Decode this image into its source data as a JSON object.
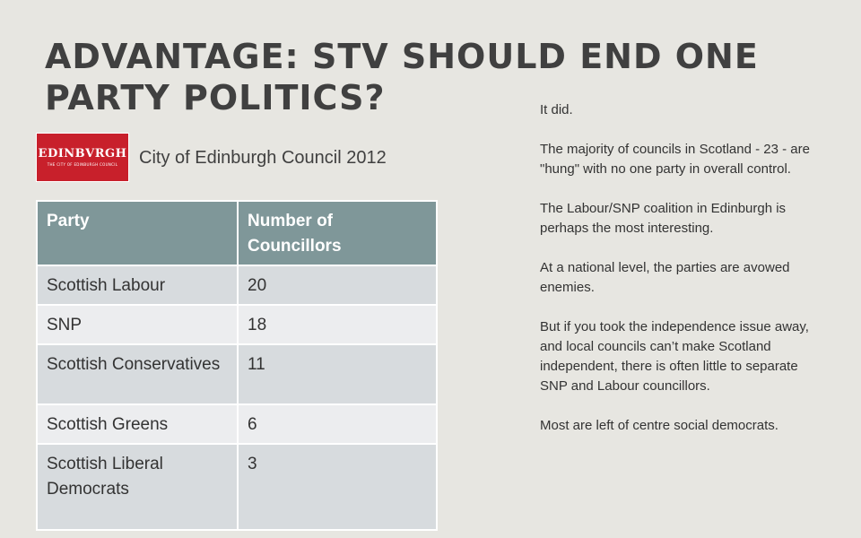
{
  "slide": {
    "title": "ADVANTAGE: STV SHOULD END ONE PARTY POLITICS?",
    "logo": {
      "main": "EDINBVRGH",
      "sub": "THE CITY OF EDINBURGH COUNCIL"
    },
    "subtitle": "City of Edinburgh Council 2012"
  },
  "table": {
    "headers": [
      "Party",
      "Number of Councillors"
    ],
    "rows": [
      {
        "party": "Scottish Labour",
        "count": "20"
      },
      {
        "party": "SNP",
        "count": "18"
      },
      {
        "party": "Scottish Conservatives",
        "count": "11"
      },
      {
        "party": "Scottish Greens",
        "count": "6"
      },
      {
        "party": "Scottish Liberal Democrats",
        "count": "3"
      }
    ]
  },
  "notes": [
    "It did.",
    "The majority of councils in Scotland - 23 - are \"hung\" with no one party in overall control.",
    "The Labour/SNP coalition in Edinburgh is perhaps the most interesting.",
    "At a national level, the parties are avowed enemies.",
    "But if you took the independence issue away, and local councils can’t make Scotland independent, there is often little to separate SNP and Labour councillors.",
    "Most are left of centre social democrats."
  ]
}
